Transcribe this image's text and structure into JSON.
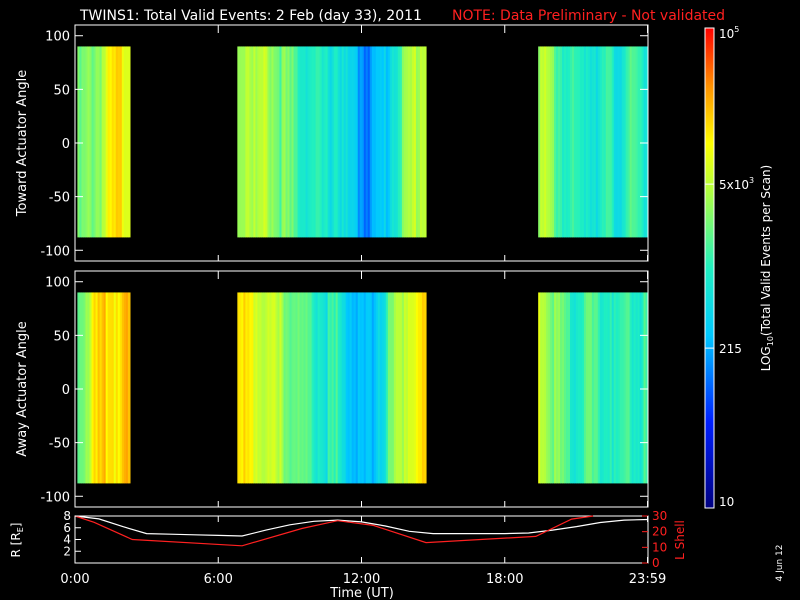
{
  "title": "TWINS1: Total Valid Events:  2 Feb (day  33), 2011",
  "note": "NOTE: Data Preliminary - Not validated",
  "footer_date": "4 Jun 12",
  "colorbar": {
    "label": "LOG10(Total Valid Events per Scan)",
    "label_parts": [
      "LOG",
      "10",
      "(Total Valid Events per Scan)"
    ],
    "range": [
      10,
      100000
    ],
    "scale": "log",
    "ticks": [
      {
        "value": 100000,
        "text": "10",
        "sup": "5"
      },
      {
        "value": 5000,
        "text": "5x10",
        "sup": "3"
      },
      {
        "value": 215,
        "text": "215",
        "sup": ""
      },
      {
        "value": 10,
        "text": "10",
        "sup": ""
      }
    ]
  },
  "chart_data": [
    {
      "type": "heatmap",
      "ylabel": "Toward Actuator Angle",
      "ylim": [
        -110,
        110
      ],
      "y_data_range": [
        -88,
        90
      ],
      "xlim_hours": [
        0,
        24
      ],
      "y_ticks": [
        {
          "v": 100,
          "t": "100"
        },
        {
          "v": 50,
          "t": "50"
        },
        {
          "v": 0,
          "t": "0"
        },
        {
          "v": -50,
          "t": "-50"
        },
        {
          "v": -100,
          "t": "-100"
        }
      ],
      "segments": [
        {
          "start": 0.1,
          "end": 2.3,
          "log_levels": [
            3.2,
            3.3,
            3.4,
            3.5,
            3.6,
            3.8,
            4.0,
            4.1,
            4.1,
            4.0
          ]
        },
        {
          "start": 6.8,
          "end": 14.7,
          "log_levels": [
            3.6,
            3.8,
            3.5,
            3.7,
            3.4,
            3.3,
            3.1,
            3.0,
            2.9,
            2.8,
            3.0,
            2.6,
            2.4,
            2.2,
            2.3,
            2.5,
            3.0,
            3.4,
            3.7,
            3.8
          ]
        },
        {
          "start": 19.4,
          "end": 23.98,
          "log_levels": [
            3.7,
            3.5,
            3.2,
            3.0,
            2.9,
            3.0,
            2.9,
            3.0,
            2.8,
            3.1,
            3.0,
            2.9
          ]
        }
      ]
    },
    {
      "type": "heatmap",
      "ylabel": "Away Actuator Angle",
      "ylim": [
        -110,
        110
      ],
      "y_data_range": [
        -88,
        90
      ],
      "xlim_hours": [
        0,
        24
      ],
      "y_ticks": [
        {
          "v": 100,
          "t": "100"
        },
        {
          "v": 50,
          "t": "50"
        },
        {
          "v": 0,
          "t": "0"
        },
        {
          "v": -50,
          "t": "-50"
        },
        {
          "v": -100,
          "t": "-100"
        }
      ],
      "segments": [
        {
          "start": 0.1,
          "end": 2.3,
          "log_levels": [
            3.4,
            3.6,
            3.8,
            4.0,
            4.1,
            4.2,
            4.2,
            4.2,
            4.2,
            4.2
          ]
        },
        {
          "start": 6.8,
          "end": 14.7,
          "log_levels": [
            4.0,
            4.1,
            3.9,
            3.8,
            3.6,
            3.5,
            3.3,
            3.1,
            3.0,
            2.9,
            3.0,
            2.7,
            2.5,
            2.3,
            2.6,
            3.0,
            3.5,
            3.8,
            4.0,
            4.1
          ]
        },
        {
          "start": 19.4,
          "end": 23.98,
          "log_levels": [
            3.8,
            3.6,
            3.3,
            3.1,
            3.0,
            3.2,
            3.0,
            3.2,
            2.9,
            3.1,
            3.0,
            3.1
          ]
        }
      ]
    },
    {
      "type": "line",
      "ylabel_left": "R [RE]",
      "ylabel_left_parts": [
        "R [R",
        "E",
        "]"
      ],
      "ylabel_right": "L Shell",
      "xlabel": "Time (UT)",
      "ylim_left": [
        0,
        8
      ],
      "ylim_right": [
        0,
        30
      ],
      "left_ticks": [
        {
          "v": 8,
          "t": "8"
        },
        {
          "v": 6,
          "t": "6"
        },
        {
          "v": 4,
          "t": "4"
        },
        {
          "v": 2,
          "t": "2"
        }
      ],
      "right_ticks": [
        {
          "v": 30,
          "t": "30"
        },
        {
          "v": 20,
          "t": "20"
        },
        {
          "v": 10,
          "t": "10"
        },
        {
          "v": 0,
          "t": "0"
        }
      ],
      "x_ticks": [
        {
          "v": 0,
          "t": "0:00"
        },
        {
          "v": 6,
          "t": "6:00"
        },
        {
          "v": 12,
          "t": "12:00"
        },
        {
          "v": 18,
          "t": "18:00"
        },
        {
          "v": 23.98,
          "t": "23:59"
        }
      ],
      "series": [
        {
          "color": "#ffffff",
          "axis": "left",
          "x": [
            0,
            1,
            2,
            3,
            4,
            5,
            6,
            7,
            8,
            9,
            10,
            11,
            12,
            13,
            14,
            15,
            16,
            17,
            18,
            19,
            20,
            21,
            22,
            23,
            24
          ],
          "y": [
            8.2,
            7.5,
            6.2,
            5.0,
            4.9,
            4.8,
            4.7,
            4.6,
            5.6,
            6.5,
            7.1,
            7.3,
            7.0,
            6.3,
            5.4,
            5.0,
            5.0,
            5.0,
            5.0,
            5.1,
            5.6,
            6.2,
            6.9,
            7.3,
            7.4
          ]
        },
        {
          "color": "#ff2020",
          "axis": "right",
          "x": [
            0,
            0.8,
            2.4,
            7.0,
            9.5,
            11.0,
            12.5,
            14.7,
            19.3,
            20.8,
            21.7
          ],
          "y": [
            30,
            26,
            15,
            11,
            22,
            27,
            24,
            13,
            17,
            28,
            30
          ]
        }
      ]
    }
  ]
}
